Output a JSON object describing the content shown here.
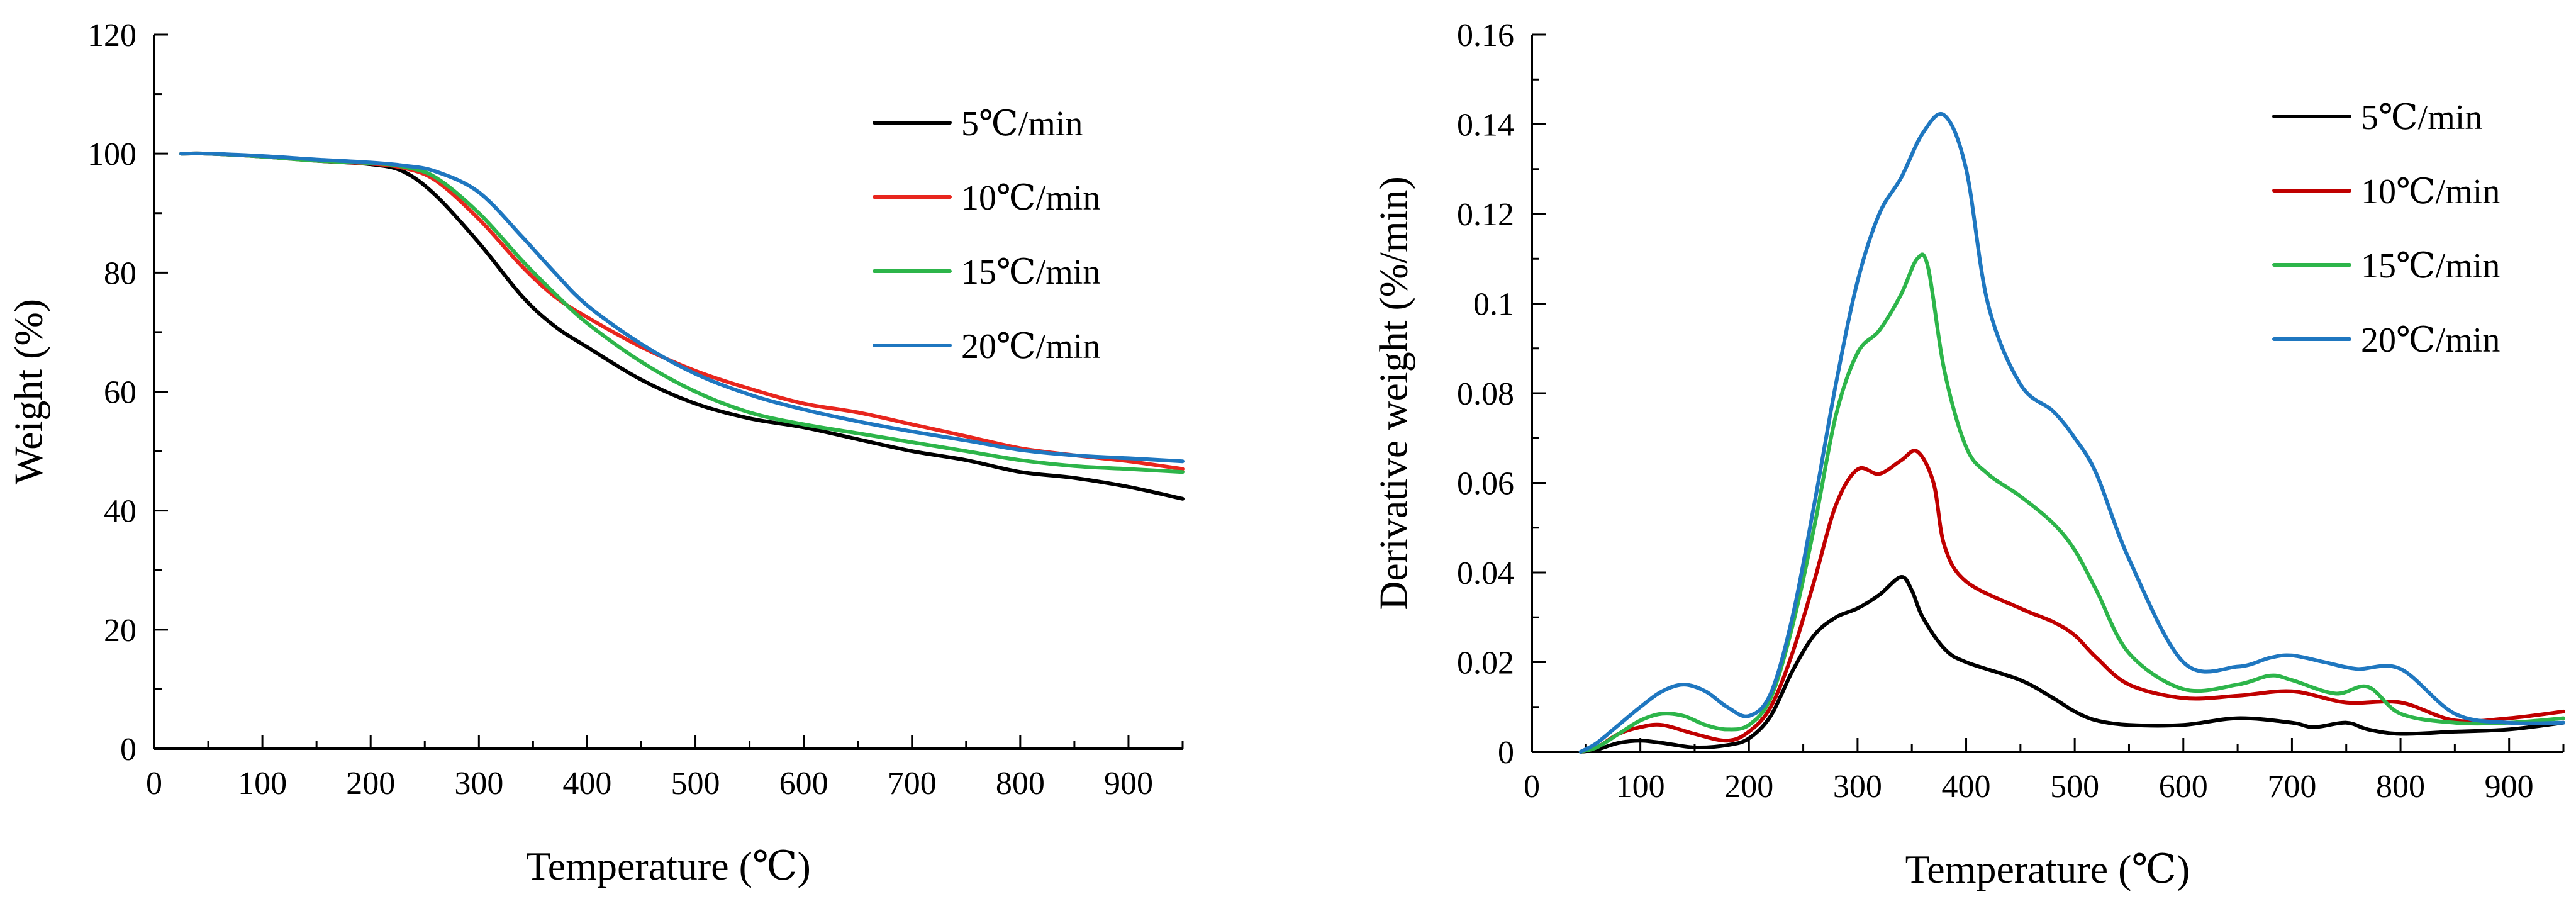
{
  "chart_data": [
    {
      "type": "line",
      "title": "",
      "xlabel": "Temperature (℃)",
      "ylabel": "Weight (%)",
      "xlim": [
        0,
        950
      ],
      "ylim": [
        0,
        120
      ],
      "xticks": [
        0,
        100,
        200,
        300,
        400,
        500,
        600,
        700,
        800,
        900
      ],
      "yticks": [
        0,
        20,
        40,
        60,
        80,
        100,
        120
      ],
      "xtick_labels": [
        "0",
        "100",
        "200",
        "300",
        "400",
        "500",
        "600",
        "700",
        "800",
        "900"
      ],
      "ytick_labels": [
        "0",
        "20",
        "40",
        "60",
        "80",
        "100",
        "120"
      ],
      "legend_position": "top-right",
      "series": [
        {
          "name": "5℃/min",
          "color": "#000000",
          "x": [
            25,
            50,
            100,
            150,
            200,
            230,
            260,
            300,
            340,
            370,
            400,
            450,
            500,
            550,
            600,
            650,
            700,
            750,
            800,
            850,
            900,
            950
          ],
          "y": [
            100,
            100,
            99.5,
            98.8,
            98.2,
            97,
            93,
            85,
            76,
            71,
            67.5,
            62,
            58,
            55.5,
            54,
            52,
            50,
            48.5,
            46.5,
            45.5,
            44,
            42
          ]
        },
        {
          "name": "10℃/min",
          "color": "#E8261E",
          "x": [
            25,
            50,
            100,
            150,
            200,
            230,
            260,
            300,
            340,
            370,
            400,
            450,
            500,
            550,
            600,
            650,
            700,
            750,
            800,
            850,
            900,
            950
          ],
          "y": [
            100,
            100,
            99.5,
            98.8,
            98.3,
            97.6,
            95.5,
            89,
            81,
            76,
            72.5,
            67.5,
            63.5,
            60.5,
            58,
            56.5,
            54.5,
            52.5,
            50.5,
            49.3,
            48.3,
            47
          ]
        },
        {
          "name": "15℃/min",
          "color": "#2DB54A",
          "x": [
            25,
            50,
            100,
            150,
            200,
            230,
            260,
            300,
            340,
            370,
            400,
            450,
            500,
            550,
            600,
            650,
            700,
            750,
            800,
            850,
            900,
            950
          ],
          "y": [
            100,
            100,
            99.5,
            98.8,
            98.4,
            97.8,
            96,
            90,
            82,
            76.5,
            71.5,
            65,
            60,
            56.5,
            54.5,
            53,
            51.5,
            50,
            48.5,
            47.5,
            47,
            46.5
          ]
        },
        {
          "name": "20℃/min",
          "color": "#1F77C0",
          "x": [
            25,
            50,
            100,
            150,
            200,
            230,
            260,
            300,
            340,
            370,
            400,
            450,
            500,
            550,
            600,
            650,
            700,
            750,
            800,
            850,
            900,
            950
          ],
          "y": [
            100,
            100,
            99.6,
            99,
            98.5,
            98,
            97,
            93.5,
            86,
            80,
            74.5,
            68,
            63,
            59.5,
            57,
            55,
            53.3,
            51.8,
            50.2,
            49.3,
            48.8,
            48.3
          ]
        }
      ]
    },
    {
      "type": "line",
      "title": "",
      "xlabel": "Temperature (℃)",
      "ylabel": "Derivative weight (%/min)",
      "xlim": [
        0,
        950
      ],
      "ylim": [
        0,
        0.16
      ],
      "xticks": [
        0,
        100,
        200,
        300,
        400,
        500,
        600,
        700,
        800,
        900
      ],
      "yticks": [
        0,
        0.02,
        0.04,
        0.06,
        0.08,
        0.1,
        0.12,
        0.14,
        0.16
      ],
      "xtick_labels": [
        "0",
        "100",
        "200",
        "300",
        "400",
        "500",
        "600",
        "700",
        "800",
        "900"
      ],
      "ytick_labels": [
        "0",
        "0.02",
        "0.04",
        "0.06",
        "0.08",
        "0.1",
        "0.12",
        "0.14",
        "0.16"
      ],
      "legend_position": "top-right",
      "series": [
        {
          "name": "5℃/min",
          "color": "#000000",
          "x": [
            45,
            60,
            80,
            100,
            120,
            150,
            180,
            200,
            220,
            240,
            260,
            280,
            300,
            320,
            340,
            350,
            360,
            380,
            400,
            450,
            480,
            500,
            520,
            550,
            600,
            650,
            700,
            720,
            750,
            770,
            800,
            850,
            900,
            950
          ],
          "y": [
            0,
            0.0005,
            0.002,
            0.0025,
            0.002,
            0.001,
            0.0015,
            0.003,
            0.008,
            0.018,
            0.026,
            0.03,
            0.032,
            0.035,
            0.039,
            0.036,
            0.03,
            0.023,
            0.02,
            0.016,
            0.012,
            0.009,
            0.007,
            0.006,
            0.006,
            0.0075,
            0.0065,
            0.0055,
            0.0065,
            0.005,
            0.004,
            0.0045,
            0.005,
            0.0065
          ]
        },
        {
          "name": "10℃/min",
          "color": "#C00000",
          "x": [
            45,
            60,
            80,
            100,
            120,
            150,
            180,
            200,
            220,
            240,
            260,
            280,
            300,
            320,
            340,
            355,
            370,
            380,
            400,
            450,
            480,
            500,
            520,
            550,
            600,
            650,
            700,
            750,
            800,
            850,
            900,
            950
          ],
          "y": [
            0,
            0.001,
            0.004,
            0.0055,
            0.006,
            0.004,
            0.0025,
            0.0045,
            0.01,
            0.022,
            0.038,
            0.055,
            0.063,
            0.062,
            0.065,
            0.067,
            0.06,
            0.046,
            0.038,
            0.032,
            0.029,
            0.026,
            0.021,
            0.015,
            0.012,
            0.0125,
            0.0135,
            0.011,
            0.011,
            0.007,
            0.0075,
            0.009
          ]
        },
        {
          "name": "15℃/min",
          "color": "#2DB54A",
          "x": [
            45,
            60,
            80,
            100,
            120,
            140,
            160,
            180,
            200,
            220,
            240,
            260,
            280,
            300,
            320,
            340,
            355,
            365,
            380,
            400,
            420,
            450,
            480,
            500,
            520,
            550,
            600,
            650,
            680,
            700,
            740,
            770,
            800,
            850,
            900,
            950
          ],
          "y": [
            0,
            0.001,
            0.004,
            0.007,
            0.0085,
            0.008,
            0.006,
            0.005,
            0.006,
            0.012,
            0.028,
            0.05,
            0.075,
            0.089,
            0.094,
            0.102,
            0.11,
            0.108,
            0.085,
            0.068,
            0.062,
            0.057,
            0.051,
            0.045,
            0.036,
            0.022,
            0.014,
            0.015,
            0.017,
            0.016,
            0.013,
            0.0145,
            0.0085,
            0.0065,
            0.0065,
            0.0075
          ]
        },
        {
          "name": "20℃/min",
          "color": "#1F77C0",
          "x": [
            45,
            60,
            80,
            100,
            120,
            140,
            160,
            180,
            200,
            220,
            240,
            260,
            280,
            300,
            320,
            340,
            360,
            380,
            400,
            420,
            450,
            480,
            500,
            520,
            550,
            600,
            650,
            680,
            700,
            730,
            760,
            800,
            850,
            900,
            950
          ],
          "y": [
            0,
            0.002,
            0.006,
            0.01,
            0.0135,
            0.015,
            0.0135,
            0.01,
            0.008,
            0.013,
            0.03,
            0.055,
            0.082,
            0.105,
            0.12,
            0.128,
            0.138,
            0.142,
            0.13,
            0.1,
            0.082,
            0.076,
            0.07,
            0.062,
            0.043,
            0.02,
            0.019,
            0.021,
            0.0215,
            0.02,
            0.0185,
            0.0185,
            0.0085,
            0.0065,
            0.0065
          ]
        }
      ]
    }
  ]
}
